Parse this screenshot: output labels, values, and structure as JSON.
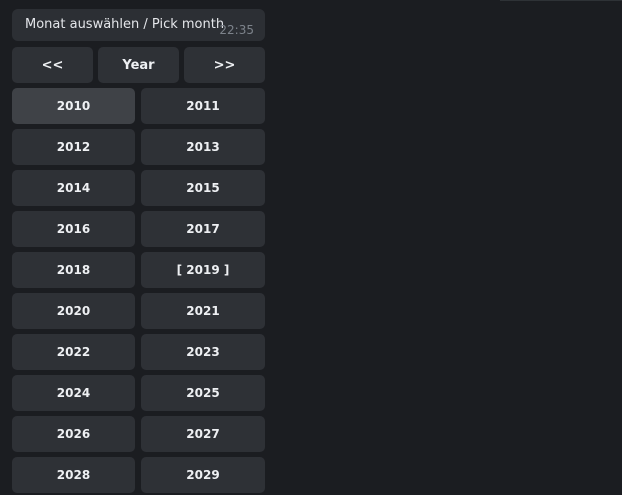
{
  "message": {
    "text": "Monat auswählen / Pick month",
    "time": "22:35"
  },
  "nav": {
    "prev": "<<",
    "title": "Year",
    "next": ">>"
  },
  "years": [
    "2010",
    "2011",
    "2012",
    "2013",
    "2014",
    "2015",
    "2016",
    "2017",
    "2018",
    "[ 2019 ]",
    "2020",
    "2021",
    "2022",
    "2023",
    "2024",
    "2025",
    "2026",
    "2027",
    "2028",
    "2029"
  ],
  "colors": {
    "background": "#1b1d21",
    "button": "#2e3136",
    "button_hover": "#3f4247"
  }
}
